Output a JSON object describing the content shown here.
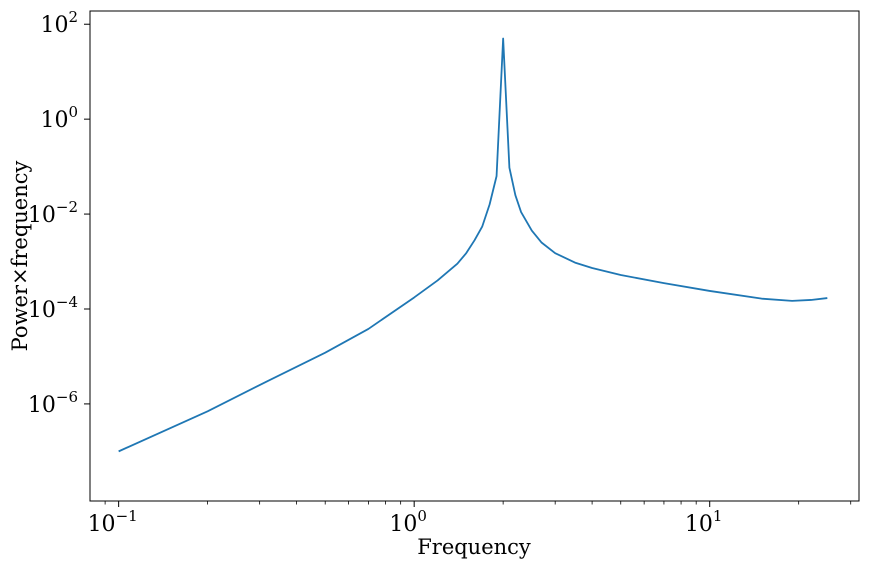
{
  "chart_data": {
    "type": "line",
    "xlabel": "Frequency",
    "ylabel": "Power×frequency",
    "xscale": "log",
    "yscale": "log",
    "xlim": [
      0.08,
      32
    ],
    "ylim": [
      9e-09,
      190
    ],
    "grid": false,
    "line_color": "#1f77b4",
    "x_ticks": [
      {
        "base": "10",
        "exp": "−1",
        "value": 0.1
      },
      {
        "base": "10",
        "exp": "0",
        "value": 1
      },
      {
        "base": "10",
        "exp": "1",
        "value": 10
      }
    ],
    "y_ticks": [
      {
        "base": "10",
        "exp": "−6",
        "value": 1e-06
      },
      {
        "base": "10",
        "exp": "−4",
        "value": 0.0001
      },
      {
        "base": "10",
        "exp": "−2",
        "value": 0.01
      },
      {
        "base": "10",
        "exp": "0",
        "value": 1
      },
      {
        "base": "10",
        "exp": "2",
        "value": 100
      }
    ],
    "series": [
      {
        "x": [
          0.1,
          0.2,
          0.3,
          0.5,
          0.7,
          1.0,
          1.2,
          1.4,
          1.5,
          1.6,
          1.7,
          1.8,
          1.9,
          2.0,
          2.1,
          2.2,
          2.3,
          2.5,
          2.7,
          3.0,
          3.5,
          4.0,
          5.0,
          7.0,
          10.0,
          15.0,
          19.0,
          22.0,
          25.0
        ],
        "y": [
          1e-07,
          7e-07,
          2.5e-06,
          1.2e-05,
          3.8e-05,
          0.000175,
          0.0004,
          0.0009,
          0.0015,
          0.0028,
          0.0055,
          0.016,
          0.063,
          50,
          0.095,
          0.025,
          0.011,
          0.0045,
          0.0025,
          0.0015,
          0.00095,
          0.00073,
          0.00052,
          0.00035,
          0.00024,
          0.000165,
          0.000148,
          0.000155,
          0.00017
        ]
      }
    ]
  }
}
